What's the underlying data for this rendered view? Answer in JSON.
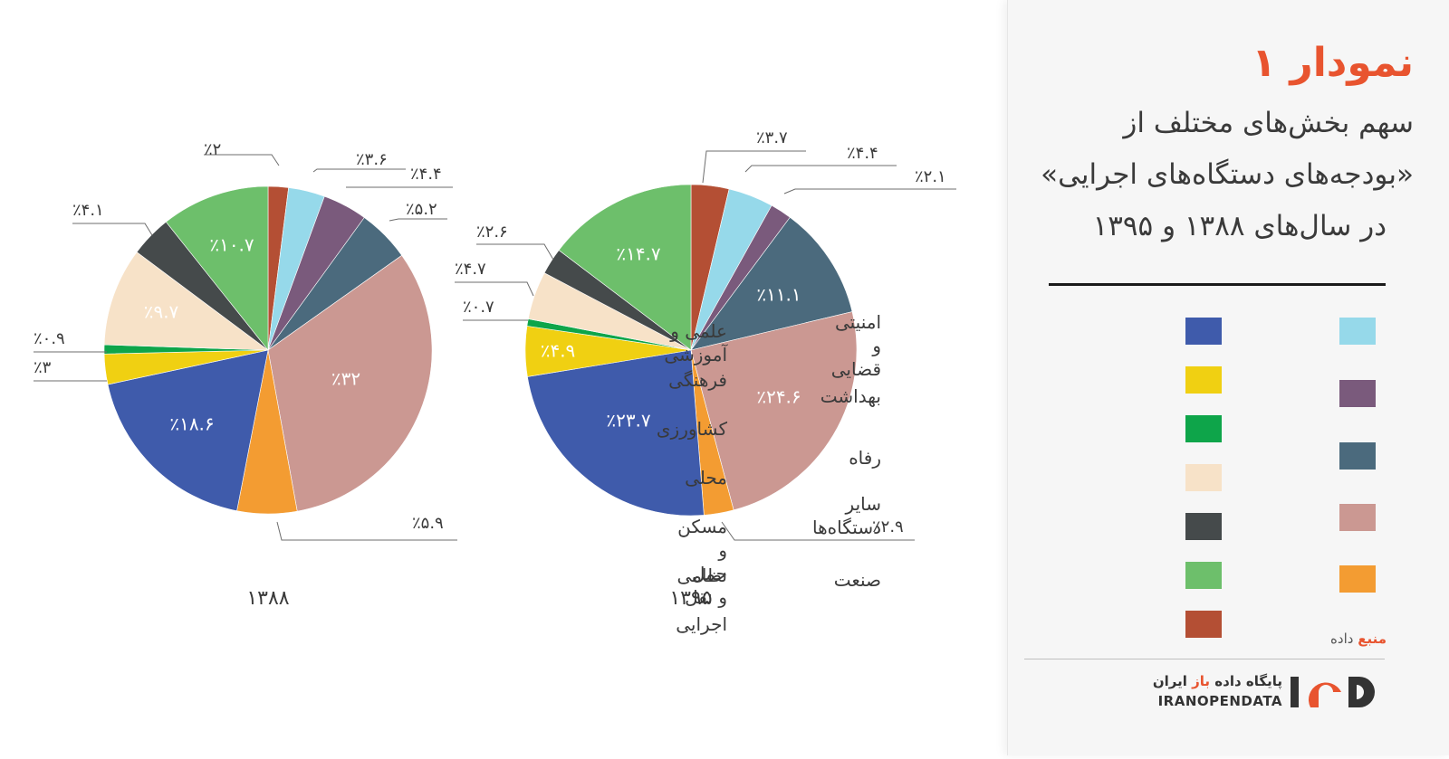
{
  "title": "نمودار ۱",
  "subtitle_lines": [
    "سهم بخش‌های مختلف از",
    "«بودجه‌های دستگاه‌های اجرایی»",
    "در سال‌های ۱۳۸۸ و ۱۳۹۵"
  ],
  "legend_right": [
    {
      "label": "امنیتی و\nقضایی",
      "color": "#96d9ea"
    },
    {
      "label": "بهداشت",
      "color": "#7a5a7c"
    },
    {
      "label": "رفاه",
      "color": "#4b6a7d"
    },
    {
      "label": "سایر\nدستگاه‌ها",
      "color": "#cb9892"
    },
    {
      "label": "صنعت",
      "color": "#f39c32"
    }
  ],
  "legend_left": [
    {
      "label": "علمی و آموزشی",
      "color": "#3f5bab"
    },
    {
      "label": "فرهنگی",
      "color": "#f0d012"
    },
    {
      "label": "کشاورزی",
      "color": "#0ea54a"
    },
    {
      "label": "محلی",
      "color": "#f7e2c8"
    },
    {
      "label": "مسکن و حمل و نقل",
      "color": "#454a4b"
    },
    {
      "label": "نظامی",
      "color": "#6dbf6b"
    },
    {
      "label": "اجرایی",
      "color": "#b44f34"
    }
  ],
  "source": {
    "accent": "منبع",
    "rest": "داده"
  },
  "logo": {
    "fa_prefix": "پایگاه داده ",
    "fa_accent": "باز",
    "fa_suffix": " ایران",
    "en": "IRANOPENDATA"
  },
  "chart_data": [
    {
      "type": "pie",
      "year_label": "۱۳۸۸",
      "slices": [
        {
          "name": "اجرایی",
          "value": 2,
          "label": "٪۲",
          "color": "#b44f34"
        },
        {
          "name": "امنیتی و قضایی",
          "value": 3.6,
          "label": "٪۳.۶",
          "color": "#96d9ea"
        },
        {
          "name": "بهداشت",
          "value": 4.4,
          "label": "٪۴.۴",
          "color": "#7a5a7c"
        },
        {
          "name": "رفاه",
          "value": 5.2,
          "label": "٪۵.۲",
          "color": "#4b6a7d"
        },
        {
          "name": "سایر دستگاه‌ها",
          "value": 32,
          "label": "٪۳۲",
          "color": "#cb9892"
        },
        {
          "name": "صنعت",
          "value": 5.9,
          "label": "٪۵.۹",
          "color": "#f39c32"
        },
        {
          "name": "علمی و آموزشی",
          "value": 18.6,
          "label": "٪۱۸.۶",
          "color": "#3f5bab"
        },
        {
          "name": "فرهنگی",
          "value": 3,
          "label": "٪۳",
          "color": "#f0d012"
        },
        {
          "name": "کشاورزی",
          "value": 0.9,
          "label": "٪۰.۹",
          "color": "#0ea54a"
        },
        {
          "name": "محلی",
          "value": 9.7,
          "label": "٪۹.۷",
          "color": "#f7e2c8"
        },
        {
          "name": "مسکن و حمل و نقل",
          "value": 4.1,
          "label": "٪۴.۱",
          "color": "#454a4b"
        },
        {
          "name": "نظامی",
          "value": 10.7,
          "label": "٪۱۰.۷",
          "color": "#6dbf6b"
        }
      ]
    },
    {
      "type": "pie",
      "year_label": "۱۳۹۵",
      "slices": [
        {
          "name": "اجرایی",
          "value": 3.7,
          "label": "٪۳.۷",
          "color": "#b44f34"
        },
        {
          "name": "امنیتی و قضایی",
          "value": 4.4,
          "label": "٪۴.۴",
          "color": "#96d9ea"
        },
        {
          "name": "بهداشت",
          "value": 2.1,
          "label": "٪۲.۱",
          "color": "#7a5a7c"
        },
        {
          "name": "رفاه",
          "value": 11.1,
          "label": "٪۱۱.۱",
          "color": "#4b6a7d"
        },
        {
          "name": "سایر دستگاه‌ها",
          "value": 24.6,
          "label": "٪۲۴.۶",
          "color": "#cb9892"
        },
        {
          "name": "صنعت",
          "value": 2.9,
          "label": "٪۲.۹",
          "color": "#f39c32"
        },
        {
          "name": "علمی و آموزشی",
          "value": 23.7,
          "label": "٪۲۳.۷",
          "color": "#3f5bab"
        },
        {
          "name": "فرهنگی",
          "value": 4.9,
          "label": "٪۴.۹",
          "color": "#f0d012"
        },
        {
          "name": "کشاورزی",
          "value": 0.7,
          "label": "٪۰.۷",
          "color": "#0ea54a"
        },
        {
          "name": "محلی",
          "value": 4.7,
          "label": "٪۴.۷",
          "color": "#f7e2c8"
        },
        {
          "name": "مسکن و حمل و نقل",
          "value": 2.6,
          "label": "٪۲.۶",
          "color": "#454a4b"
        },
        {
          "name": "نظامی",
          "value": 14.7,
          "label": "٪۱۴.۷",
          "color": "#6dbf6b"
        }
      ]
    }
  ]
}
